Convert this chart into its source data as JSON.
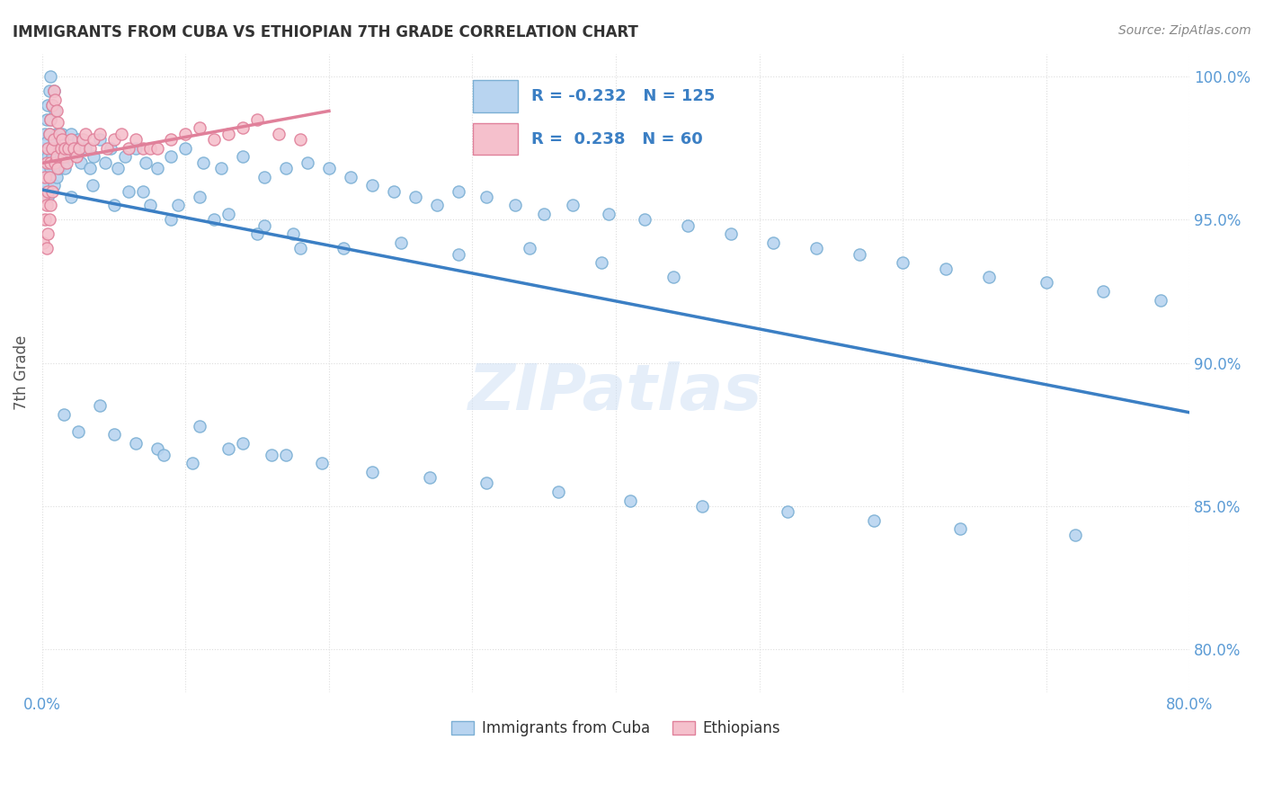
{
  "title": "IMMIGRANTS FROM CUBA VS ETHIOPIAN 7TH GRADE CORRELATION CHART",
  "source": "Source: ZipAtlas.com",
  "ylabel": "7th Grade",
  "xlim": [
    0.0,
    0.8
  ],
  "ylim": [
    0.785,
    1.008
  ],
  "yticks": [
    0.8,
    0.85,
    0.9,
    0.95,
    1.0
  ],
  "yticklabels": [
    "80.0%",
    "85.0%",
    "90.0%",
    "95.0%",
    "100.0%"
  ],
  "xtick_positions": [
    0.0,
    0.1,
    0.2,
    0.3,
    0.4,
    0.5,
    0.6,
    0.7,
    0.8
  ],
  "xticklabels": [
    "0.0%",
    "",
    "",
    "",
    "",
    "",
    "",
    "",
    "80.0%"
  ],
  "watermark": "ZIPatlas",
  "cuba_color": "#b8d4f0",
  "cuba_edge_color": "#7bafd4",
  "ethiopia_color": "#f5c0cc",
  "ethiopia_edge_color": "#e0809a",
  "cuba_line_color": "#3b7fc4",
  "ethiopia_line_color": "#e0809a",
  "cuba_R": -0.232,
  "cuba_N": 125,
  "ethiopia_R": 0.238,
  "ethiopia_N": 60,
  "legend_label_cuba": "Immigrants from Cuba",
  "legend_label_ethiopia": "Ethiopians",
  "background_color": "#ffffff",
  "grid_color": "#dddddd",
  "cuba_x": [
    0.001,
    0.001,
    0.002,
    0.002,
    0.002,
    0.003,
    0.003,
    0.003,
    0.004,
    0.004,
    0.004,
    0.005,
    0.005,
    0.005,
    0.006,
    0.006,
    0.006,
    0.007,
    0.007,
    0.008,
    0.008,
    0.008,
    0.009,
    0.009,
    0.01,
    0.01,
    0.011,
    0.012,
    0.013,
    0.014,
    0.015,
    0.016,
    0.018,
    0.02,
    0.022,
    0.025,
    0.027,
    0.03,
    0.033,
    0.036,
    0.04,
    0.044,
    0.048,
    0.053,
    0.058,
    0.065,
    0.072,
    0.08,
    0.09,
    0.1,
    0.112,
    0.125,
    0.14,
    0.155,
    0.17,
    0.185,
    0.2,
    0.215,
    0.23,
    0.245,
    0.26,
    0.275,
    0.29,
    0.31,
    0.33,
    0.35,
    0.37,
    0.395,
    0.42,
    0.45,
    0.48,
    0.51,
    0.54,
    0.57,
    0.6,
    0.63,
    0.66,
    0.7,
    0.74,
    0.78,
    0.06,
    0.075,
    0.09,
    0.11,
    0.13,
    0.155,
    0.175,
    0.02,
    0.035,
    0.05,
    0.07,
    0.095,
    0.12,
    0.15,
    0.18,
    0.21,
    0.25,
    0.29,
    0.34,
    0.39,
    0.44,
    0.05,
    0.08,
    0.11,
    0.14,
    0.17,
    0.015,
    0.025,
    0.04,
    0.065,
    0.085,
    0.105,
    0.13,
    0.16,
    0.195,
    0.23,
    0.27,
    0.31,
    0.36,
    0.41,
    0.46,
    0.52,
    0.58,
    0.64,
    0.72
  ],
  "cuba_y": [
    0.975,
    0.968,
    0.98,
    0.972,
    0.96,
    0.985,
    0.977,
    0.962,
    0.99,
    0.972,
    0.958,
    0.995,
    0.98,
    0.965,
    1.0,
    0.985,
    0.968,
    0.99,
    0.972,
    0.995,
    0.978,
    0.962,
    0.988,
    0.97,
    0.98,
    0.965,
    0.975,
    0.968,
    0.972,
    0.98,
    0.975,
    0.968,
    0.972,
    0.98,
    0.975,
    0.978,
    0.97,
    0.975,
    0.968,
    0.972,
    0.978,
    0.97,
    0.975,
    0.968,
    0.972,
    0.975,
    0.97,
    0.968,
    0.972,
    0.975,
    0.97,
    0.968,
    0.972,
    0.965,
    0.968,
    0.97,
    0.968,
    0.965,
    0.962,
    0.96,
    0.958,
    0.955,
    0.96,
    0.958,
    0.955,
    0.952,
    0.955,
    0.952,
    0.95,
    0.948,
    0.945,
    0.942,
    0.94,
    0.938,
    0.935,
    0.933,
    0.93,
    0.928,
    0.925,
    0.922,
    0.96,
    0.955,
    0.95,
    0.958,
    0.952,
    0.948,
    0.945,
    0.958,
    0.962,
    0.955,
    0.96,
    0.955,
    0.95,
    0.945,
    0.94,
    0.94,
    0.942,
    0.938,
    0.94,
    0.935,
    0.93,
    0.875,
    0.87,
    0.878,
    0.872,
    0.868,
    0.882,
    0.876,
    0.885,
    0.872,
    0.868,
    0.865,
    0.87,
    0.868,
    0.865,
    0.862,
    0.86,
    0.858,
    0.855,
    0.852,
    0.85,
    0.848,
    0.845,
    0.842,
    0.84
  ],
  "ethiopia_x": [
    0.001,
    0.001,
    0.002,
    0.002,
    0.003,
    0.003,
    0.003,
    0.004,
    0.004,
    0.004,
    0.005,
    0.005,
    0.005,
    0.006,
    0.006,
    0.006,
    0.007,
    0.007,
    0.007,
    0.008,
    0.008,
    0.009,
    0.009,
    0.01,
    0.01,
    0.011,
    0.011,
    0.012,
    0.013,
    0.014,
    0.015,
    0.016,
    0.017,
    0.018,
    0.02,
    0.022,
    0.024,
    0.026,
    0.028,
    0.03,
    0.033,
    0.036,
    0.04,
    0.045,
    0.05,
    0.055,
    0.06,
    0.065,
    0.07,
    0.075,
    0.08,
    0.09,
    0.1,
    0.11,
    0.12,
    0.13,
    0.14,
    0.15,
    0.165,
    0.18
  ],
  "ethiopia_y": [
    0.958,
    0.942,
    0.965,
    0.95,
    0.97,
    0.955,
    0.94,
    0.975,
    0.96,
    0.945,
    0.98,
    0.965,
    0.95,
    0.985,
    0.97,
    0.955,
    0.99,
    0.975,
    0.96,
    0.995,
    0.978,
    0.992,
    0.97,
    0.988,
    0.972,
    0.984,
    0.968,
    0.98,
    0.975,
    0.978,
    0.972,
    0.975,
    0.97,
    0.975,
    0.978,
    0.975,
    0.972,
    0.975,
    0.978,
    0.98,
    0.975,
    0.978,
    0.98,
    0.975,
    0.978,
    0.98,
    0.975,
    0.978,
    0.975,
    0.975,
    0.975,
    0.978,
    0.98,
    0.982,
    0.978,
    0.98,
    0.982,
    0.985,
    0.98,
    0.978
  ]
}
